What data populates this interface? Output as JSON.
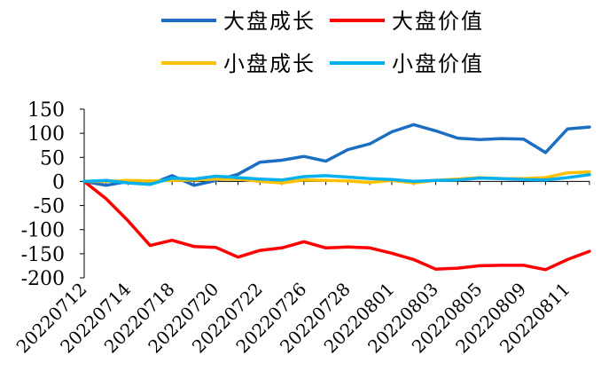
{
  "chart_data": {
    "type": "line",
    "title": "",
    "xlabel": "",
    "ylabel": "",
    "ylim": [
      -200,
      150
    ],
    "yticks": [
      150,
      100,
      50,
      0,
      -50,
      -100,
      -150,
      -200
    ],
    "legend_placement": "top-center",
    "grid": false,
    "x": [
      "20220712",
      "20220713",
      "20220714",
      "20220715",
      "20220718",
      "20220719",
      "20220720",
      "20220721",
      "20220722",
      "20220725",
      "20220726",
      "20220727",
      "20220728",
      "20220729",
      "20220801",
      "20220802",
      "20220803",
      "20220804",
      "20220805",
      "20220808",
      "20220809",
      "20220810",
      "20220811",
      "20220812"
    ],
    "x_tick_labels": [
      "20220712",
      "20220714",
      "20220718",
      "20220720",
      "20220722",
      "20220726",
      "20220728",
      "20220801",
      "20220803",
      "20220805",
      "20220809",
      "20220811"
    ],
    "series": [
      {
        "name": "大盘成长",
        "color": "#1B6EC2",
        "values": [
          0,
          -8,
          0,
          -6,
          12,
          -8,
          2,
          15,
          40,
          44,
          52,
          42,
          66,
          78,
          103,
          118,
          105,
          90,
          87,
          89,
          88,
          60,
          109,
          113
        ]
      },
      {
        "name": "大盘价值",
        "color": "#FF0000",
        "values": [
          0,
          -36,
          -82,
          -133,
          -122,
          -135,
          -137,
          -157,
          -143,
          -138,
          -125,
          -138,
          -136,
          -138,
          -149,
          -162,
          -182,
          -180,
          -175,
          -174,
          -174,
          -183,
          -162,
          -145
        ]
      },
      {
        "name": "小盘成长",
        "color": "#FFC000",
        "values": [
          0,
          0,
          2,
          1,
          2,
          3,
          5,
          5,
          0,
          -3,
          3,
          2,
          1,
          -2,
          2,
          -3,
          2,
          5,
          8,
          6,
          6,
          8,
          18,
          20
        ]
      },
      {
        "name": "小盘价值",
        "color": "#00B0F0",
        "values": [
          0,
          2,
          -3,
          -6,
          7,
          5,
          11,
          8,
          5,
          3,
          10,
          12,
          9,
          6,
          4,
          0,
          2,
          3,
          7,
          6,
          4,
          3,
          8,
          14
        ]
      }
    ]
  }
}
